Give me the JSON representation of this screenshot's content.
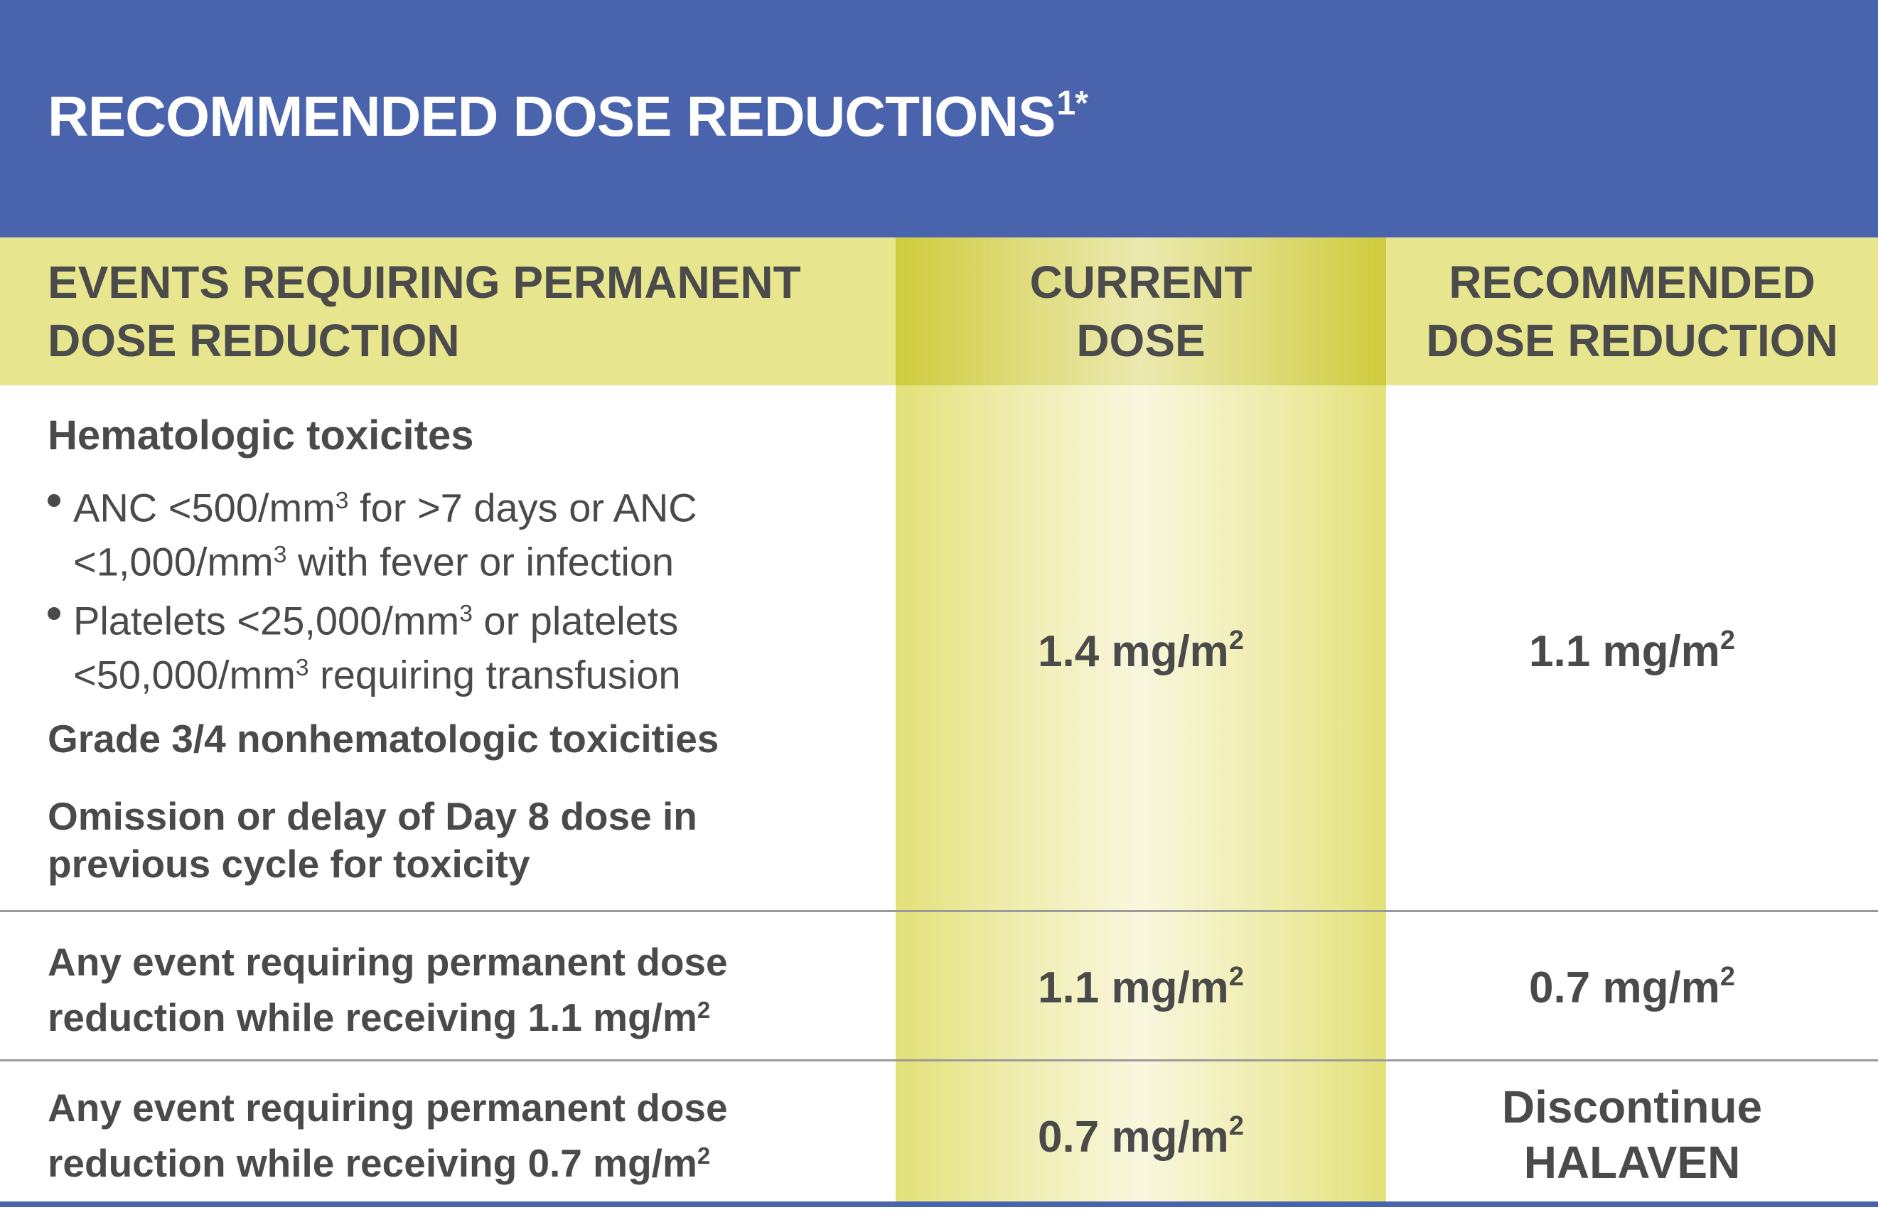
{
  "title": {
    "text": "RECOMMENDED DOSE REDUCTIONS",
    "superscript": "1*"
  },
  "columns": {
    "events": {
      "line1": "EVENTS REQUIRING PERMANENT",
      "line2": "DOSE REDUCTION"
    },
    "current": {
      "line1": "CURRENT",
      "line2": "DOSE"
    },
    "recommended": {
      "line1": "RECOMMENDED",
      "line2": "DOSE REDUCTION"
    }
  },
  "rows": [
    {
      "heading": "Hematologic toxicites",
      "bullets": [
        {
          "line1_a": "ANC <500/mm",
          "line1_sup": "3",
          "line1_b": " for >7 days or ANC",
          "line2_a": "<1,000/mm",
          "line2_sup": "3",
          "line2_b": " with fever or infection"
        },
        {
          "line1_a": "Platelets <25,000/mm",
          "line1_sup": "3",
          "line1_b": " or platelets",
          "line2_a": "<50,000/mm",
          "line2_sup": "3",
          "line2_b": " requiring transfusion"
        }
      ],
      "extra1": "Grade 3/4 nonhematologic toxicities",
      "extra2_line1": "Omission or delay of Day 8 dose in",
      "extra2_line2": "previous cycle for toxicity",
      "current_dose": "1.4 mg/m",
      "current_sup": "2",
      "recommended_dose": "1.1 mg/m",
      "recommended_sup": "2"
    },
    {
      "event_line1": "Any event requiring permanent dose",
      "event_line2": "reduction while receiving 1.1 mg/m",
      "event_sup": "2",
      "current_dose": "1.1 mg/m",
      "current_sup": "2",
      "recommended_dose": "0.7 mg/m",
      "recommended_sup": "2"
    },
    {
      "event_line1": "Any event requiring permanent dose",
      "event_line2": "reduction while receiving 0.7 mg/m",
      "event_sup": "2",
      "current_dose": "0.7 mg/m",
      "current_sup": "2",
      "recommended_line1": "Discontinue",
      "recommended_line2": "HALAVEN"
    }
  ],
  "colors": {
    "banner": "#4963ad",
    "header_band": "#e7e68f",
    "column_highlight": "#cfcb3d",
    "text": "#4a4a4a"
  }
}
